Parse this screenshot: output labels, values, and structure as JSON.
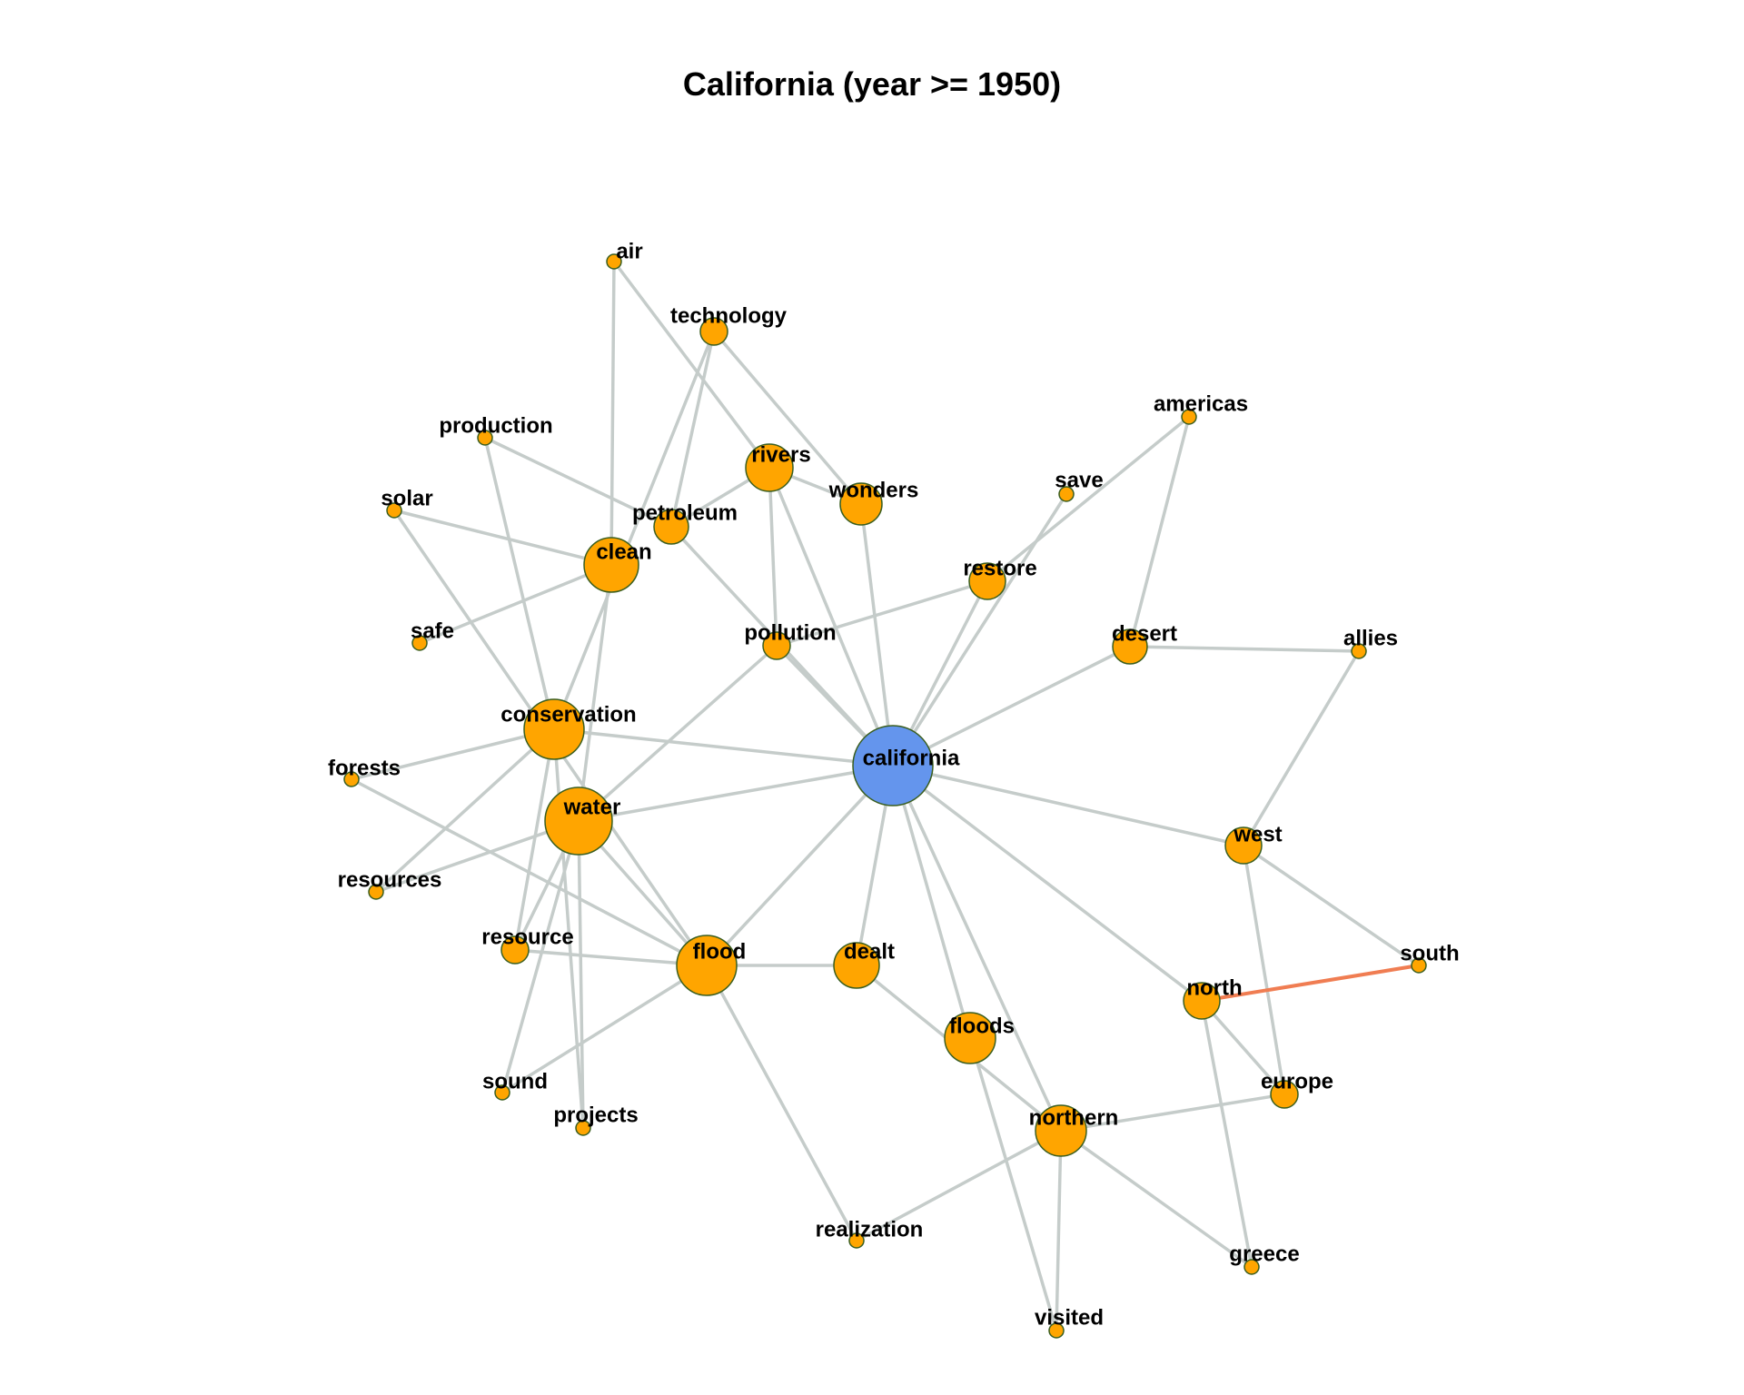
{
  "title": "California (year >= 1950)",
  "colors": {
    "edge": "#c5ccca",
    "edge_highlight": "#f07d52",
    "node_default": "#ffa500",
    "node_center": "#6495ed",
    "node_stroke": "#3a5e1f"
  },
  "nodes": [
    {
      "id": "california",
      "label": "california",
      "highlight": true
    },
    {
      "id": "air",
      "label": "air"
    },
    {
      "id": "technology",
      "label": "technology"
    },
    {
      "id": "production",
      "label": "production"
    },
    {
      "id": "rivers",
      "label": "rivers"
    },
    {
      "id": "wonders",
      "label": "wonders"
    },
    {
      "id": "solar",
      "label": "solar"
    },
    {
      "id": "petroleum",
      "label": "petroleum"
    },
    {
      "id": "clean",
      "label": "clean"
    },
    {
      "id": "save",
      "label": "save"
    },
    {
      "id": "americas",
      "label": "americas"
    },
    {
      "id": "restore",
      "label": "restore"
    },
    {
      "id": "safe",
      "label": "safe"
    },
    {
      "id": "pollution",
      "label": "pollution"
    },
    {
      "id": "desert",
      "label": "desert"
    },
    {
      "id": "allies",
      "label": "allies"
    },
    {
      "id": "conservation",
      "label": "conservation"
    },
    {
      "id": "forests",
      "label": "forests"
    },
    {
      "id": "water",
      "label": "water"
    },
    {
      "id": "west",
      "label": "west"
    },
    {
      "id": "resources",
      "label": "resources"
    },
    {
      "id": "resource",
      "label": "resource"
    },
    {
      "id": "flood",
      "label": "flood"
    },
    {
      "id": "dealt",
      "label": "dealt"
    },
    {
      "id": "south",
      "label": "south"
    },
    {
      "id": "north",
      "label": "north"
    },
    {
      "id": "floods",
      "label": "floods"
    },
    {
      "id": "sound",
      "label": "sound"
    },
    {
      "id": "europe",
      "label": "europe"
    },
    {
      "id": "projects",
      "label": "projects"
    },
    {
      "id": "northern",
      "label": "northern"
    },
    {
      "id": "realization",
      "label": "realization"
    },
    {
      "id": "greece",
      "label": "greece"
    },
    {
      "id": "visited",
      "label": "visited"
    }
  ],
  "edges": [
    {
      "source": "air",
      "target": "clean"
    },
    {
      "source": "air",
      "target": "rivers"
    },
    {
      "source": "technology",
      "target": "petroleum"
    },
    {
      "source": "technology",
      "target": "conservation"
    },
    {
      "source": "technology",
      "target": "wonders"
    },
    {
      "source": "production",
      "target": "petroleum"
    },
    {
      "source": "production",
      "target": "conservation"
    },
    {
      "source": "solar",
      "target": "clean"
    },
    {
      "source": "solar",
      "target": "flood"
    },
    {
      "source": "safe",
      "target": "clean"
    },
    {
      "source": "clean",
      "target": "water"
    },
    {
      "source": "rivers",
      "target": "petroleum"
    },
    {
      "source": "rivers",
      "target": "pollution"
    },
    {
      "source": "rivers",
      "target": "california"
    },
    {
      "source": "rivers",
      "target": "wonders"
    },
    {
      "source": "wonders",
      "target": "california"
    },
    {
      "source": "petroleum",
      "target": "california"
    },
    {
      "source": "pollution",
      "target": "restore"
    },
    {
      "source": "pollution",
      "target": "california"
    },
    {
      "source": "pollution",
      "target": "water"
    },
    {
      "source": "save",
      "target": "california"
    },
    {
      "source": "americas",
      "target": "restore"
    },
    {
      "source": "americas",
      "target": "desert"
    },
    {
      "source": "restore",
      "target": "california"
    },
    {
      "source": "desert",
      "target": "allies"
    },
    {
      "source": "desert",
      "target": "california"
    },
    {
      "source": "allies",
      "target": "west"
    },
    {
      "source": "conservation",
      "target": "california"
    },
    {
      "source": "conservation",
      "target": "forests"
    },
    {
      "source": "conservation",
      "target": "resources"
    },
    {
      "source": "conservation",
      "target": "resource"
    },
    {
      "source": "conservation",
      "target": "projects"
    },
    {
      "source": "forests",
      "target": "flood"
    },
    {
      "source": "water",
      "target": "california"
    },
    {
      "source": "water",
      "target": "resources"
    },
    {
      "source": "water",
      "target": "resource"
    },
    {
      "source": "water",
      "target": "sound"
    },
    {
      "source": "water",
      "target": "projects"
    },
    {
      "source": "water",
      "target": "flood"
    },
    {
      "source": "california",
      "target": "flood"
    },
    {
      "source": "california",
      "target": "dealt"
    },
    {
      "source": "california",
      "target": "floods"
    },
    {
      "source": "california",
      "target": "northern"
    },
    {
      "source": "california",
      "target": "west"
    },
    {
      "source": "california",
      "target": "north"
    },
    {
      "source": "west",
      "target": "south"
    },
    {
      "source": "west",
      "target": "europe"
    },
    {
      "source": "north",
      "target": "south",
      "highlight": true
    },
    {
      "source": "north",
      "target": "europe"
    },
    {
      "source": "north",
      "target": "greece"
    },
    {
      "source": "resource",
      "target": "flood"
    },
    {
      "source": "flood",
      "target": "dealt"
    },
    {
      "source": "flood",
      "target": "sound"
    },
    {
      "source": "flood",
      "target": "realization"
    },
    {
      "source": "dealt",
      "target": "northern"
    },
    {
      "source": "floods",
      "target": "visited"
    },
    {
      "source": "northern",
      "target": "europe"
    },
    {
      "source": "northern",
      "target": "greece"
    },
    {
      "source": "northern",
      "target": "visited"
    },
    {
      "source": "northern",
      "target": "realization"
    }
  ]
}
